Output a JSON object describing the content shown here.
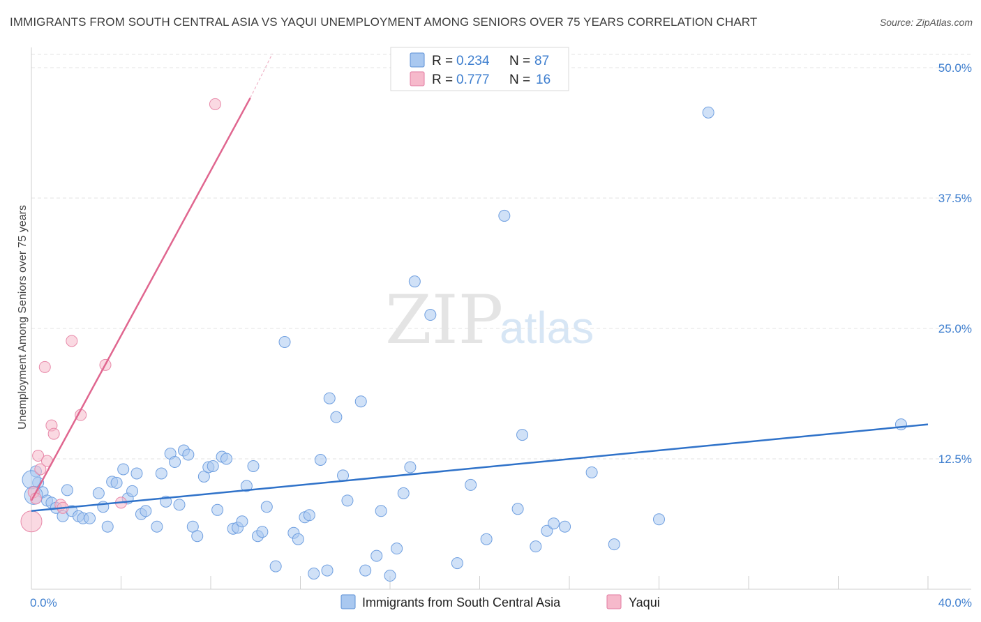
{
  "title": "IMMIGRANTS FROM SOUTH CENTRAL ASIA VS YAQUI UNEMPLOYMENT AMONG SENIORS OVER 75 YEARS CORRELATION CHART",
  "source": "Source: ZipAtlas.com",
  "watermark": {
    "zip": "ZIP",
    "atlas": "atlas"
  },
  "legend": {
    "rows": [
      {
        "r_label": "R =",
        "r_value": "0.234",
        "n_label": "N =",
        "n_value": "87",
        "color": "#a9c8f0",
        "stroke": "#5b8fd6"
      },
      {
        "r_label": "R =",
        "r_value": "0.777",
        "n_label": "N =",
        "n_value": "16",
        "color": "#f6b9cb",
        "stroke": "#e27aa0"
      }
    ]
  },
  "bottom_legend": [
    {
      "label": "Immigrants from South Central Asia",
      "color": "#a9c8f0",
      "stroke": "#5b8fd6"
    },
    {
      "label": "Yaqui",
      "color": "#f6b9cb",
      "stroke": "#e27aa0"
    }
  ],
  "chart_data": {
    "type": "scatter",
    "title": "IMMIGRANTS FROM SOUTH CENTRAL ASIA VS YAQUI UNEMPLOYMENT AMONG SENIORS OVER 75 YEARS CORRELATION CHART",
    "xlabel": "",
    "ylabel": "Unemployment Among Seniors over 75 years",
    "xlim": [
      0,
      40
    ],
    "ylim": [
      0,
      50
    ],
    "x_tick_labels": [
      "0.0%",
      "40.0%"
    ],
    "y_tick_values": [
      12.5,
      25.0,
      37.5,
      50.0
    ],
    "y_tick_labels": [
      "12.5%",
      "25.0%",
      "37.5%",
      "50.0%"
    ],
    "grid": "horizontal dashed",
    "series": [
      {
        "name": "Immigrants from South Central Asia",
        "color": "#a9c8f0",
        "line_color": "#2f72c9",
        "trend": {
          "x": [
            0,
            40
          ],
          "y": [
            7.5,
            15.8
          ]
        },
        "points": [
          {
            "x": 0.2,
            "y": 11.3
          },
          {
            "x": 0.3,
            "y": 10.2
          },
          {
            "x": 0.5,
            "y": 9.3
          },
          {
            "x": 0.7,
            "y": 8.5
          },
          {
            "x": 0.9,
            "y": 8.3
          },
          {
            "x": 1.1,
            "y": 7.8
          },
          {
            "x": 1.4,
            "y": 7.0
          },
          {
            "x": 1.6,
            "y": 9.5
          },
          {
            "x": 1.8,
            "y": 7.5
          },
          {
            "x": 2.1,
            "y": 7.0
          },
          {
            "x": 2.3,
            "y": 6.8
          },
          {
            "x": 2.6,
            "y": 6.8
          },
          {
            "x": 3.0,
            "y": 9.2
          },
          {
            "x": 3.2,
            "y": 7.9
          },
          {
            "x": 3.4,
            "y": 6.0
          },
          {
            "x": 3.6,
            "y": 10.3
          },
          {
            "x": 3.8,
            "y": 10.2
          },
          {
            "x": 4.1,
            "y": 11.5
          },
          {
            "x": 4.3,
            "y": 8.7
          },
          {
            "x": 4.5,
            "y": 9.4
          },
          {
            "x": 4.7,
            "y": 11.1
          },
          {
            "x": 4.9,
            "y": 7.2
          },
          {
            "x": 5.1,
            "y": 7.5
          },
          {
            "x": 5.6,
            "y": 6.0
          },
          {
            "x": 5.8,
            "y": 11.1
          },
          {
            "x": 6.0,
            "y": 8.4
          },
          {
            "x": 6.2,
            "y": 13.0
          },
          {
            "x": 6.4,
            "y": 12.2
          },
          {
            "x": 6.6,
            "y": 8.1
          },
          {
            "x": 6.8,
            "y": 13.3
          },
          {
            "x": 7.0,
            "y": 12.9
          },
          {
            "x": 7.2,
            "y": 6.0
          },
          {
            "x": 7.4,
            "y": 5.1
          },
          {
            "x": 7.7,
            "y": 10.8
          },
          {
            "x": 7.9,
            "y": 11.7
          },
          {
            "x": 8.1,
            "y": 11.8
          },
          {
            "x": 8.3,
            "y": 7.6
          },
          {
            "x": 8.5,
            "y": 12.7
          },
          {
            "x": 8.7,
            "y": 12.5
          },
          {
            "x": 9.0,
            "y": 5.8
          },
          {
            "x": 9.2,
            "y": 5.9
          },
          {
            "x": 9.4,
            "y": 6.5
          },
          {
            "x": 9.6,
            "y": 9.9
          },
          {
            "x": 9.9,
            "y": 11.8
          },
          {
            "x": 10.1,
            "y": 5.1
          },
          {
            "x": 10.3,
            "y": 5.5
          },
          {
            "x": 10.5,
            "y": 7.9
          },
          {
            "x": 10.9,
            "y": 2.2
          },
          {
            "x": 11.3,
            "y": 23.7
          },
          {
            "x": 11.7,
            "y": 5.4
          },
          {
            "x": 11.9,
            "y": 4.8
          },
          {
            "x": 12.2,
            "y": 6.9
          },
          {
            "x": 12.4,
            "y": 7.1
          },
          {
            "x": 12.6,
            "y": 1.5
          },
          {
            "x": 12.9,
            "y": 12.4
          },
          {
            "x": 13.2,
            "y": 1.8
          },
          {
            "x": 13.3,
            "y": 18.3
          },
          {
            "x": 13.6,
            "y": 16.5
          },
          {
            "x": 13.9,
            "y": 10.9
          },
          {
            "x": 14.1,
            "y": 8.5
          },
          {
            "x": 14.7,
            "y": 18.0
          },
          {
            "x": 14.9,
            "y": 1.8
          },
          {
            "x": 15.6,
            "y": 7.5
          },
          {
            "x": 15.4,
            "y": 3.2
          },
          {
            "x": 16.0,
            "y": 1.3
          },
          {
            "x": 16.3,
            "y": 3.9
          },
          {
            "x": 16.6,
            "y": 9.2
          },
          {
            "x": 16.9,
            "y": 11.7
          },
          {
            "x": 17.1,
            "y": 29.5
          },
          {
            "x": 17.8,
            "y": 26.3
          },
          {
            "x": 19.0,
            "y": 2.5
          },
          {
            "x": 19.6,
            "y": 10.0
          },
          {
            "x": 20.3,
            "y": 4.8
          },
          {
            "x": 21.1,
            "y": 35.8
          },
          {
            "x": 21.7,
            "y": 7.7
          },
          {
            "x": 21.9,
            "y": 14.8
          },
          {
            "x": 22.5,
            "y": 4.1
          },
          {
            "x": 23.0,
            "y": 5.6
          },
          {
            "x": 23.3,
            "y": 6.3
          },
          {
            "x": 23.8,
            "y": 6.0
          },
          {
            "x": 25.0,
            "y": 11.2
          },
          {
            "x": 26.0,
            "y": 4.3
          },
          {
            "x": 28.0,
            "y": 6.7
          },
          {
            "x": 30.2,
            "y": 45.7
          },
          {
            "x": 38.8,
            "y": 15.8
          },
          {
            "x": 0.0,
            "y": 10.5
          },
          {
            "x": 0.1,
            "y": 9.0
          }
        ]
      },
      {
        "name": "Yaqui",
        "color": "#f6b9cb",
        "line_color": "#e0668f",
        "trend": {
          "x": [
            0,
            10.5
          ],
          "y": [
            8.5,
            50.0
          ]
        },
        "points": [
          {
            "x": 0.0,
            "y": 6.5
          },
          {
            "x": 0.1,
            "y": 9.3
          },
          {
            "x": 0.3,
            "y": 12.8
          },
          {
            "x": 0.4,
            "y": 11.5
          },
          {
            "x": 0.6,
            "y": 21.3
          },
          {
            "x": 0.7,
            "y": 12.3
          },
          {
            "x": 0.9,
            "y": 15.7
          },
          {
            "x": 1.0,
            "y": 14.9
          },
          {
            "x": 1.3,
            "y": 8.1
          },
          {
            "x": 1.4,
            "y": 7.8
          },
          {
            "x": 1.8,
            "y": 23.8
          },
          {
            "x": 2.2,
            "y": 16.7
          },
          {
            "x": 3.3,
            "y": 21.5
          },
          {
            "x": 4.0,
            "y": 8.3
          },
          {
            "x": 8.2,
            "y": 46.5
          },
          {
            "x": 0.2,
            "y": 8.7
          }
        ]
      }
    ]
  }
}
